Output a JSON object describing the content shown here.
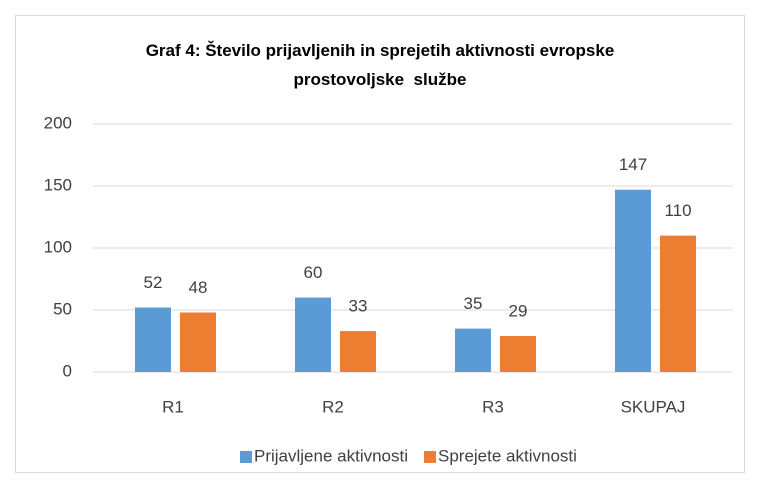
{
  "chart_data": {
    "type": "bar",
    "title": "Graf 4: Število prijavljenih in sprejetih aktivnosti evropske prostovoljske  službe",
    "categories": [
      "R1",
      "R2",
      "R3",
      "SKUPAJ"
    ],
    "series": [
      {
        "name": "Prijavljene aktivnosti",
        "color": "#5b9bd5",
        "values": [
          52,
          60,
          35,
          147
        ]
      },
      {
        "name": "Sprejete aktivnosti",
        "color": "#ed7d31",
        "values": [
          48,
          33,
          29,
          110
        ]
      }
    ],
    "ylim": [
      0,
      200
    ],
    "yticks": [
      0,
      50,
      100,
      150,
      200
    ],
    "grid": true,
    "legend": "bottom"
  }
}
